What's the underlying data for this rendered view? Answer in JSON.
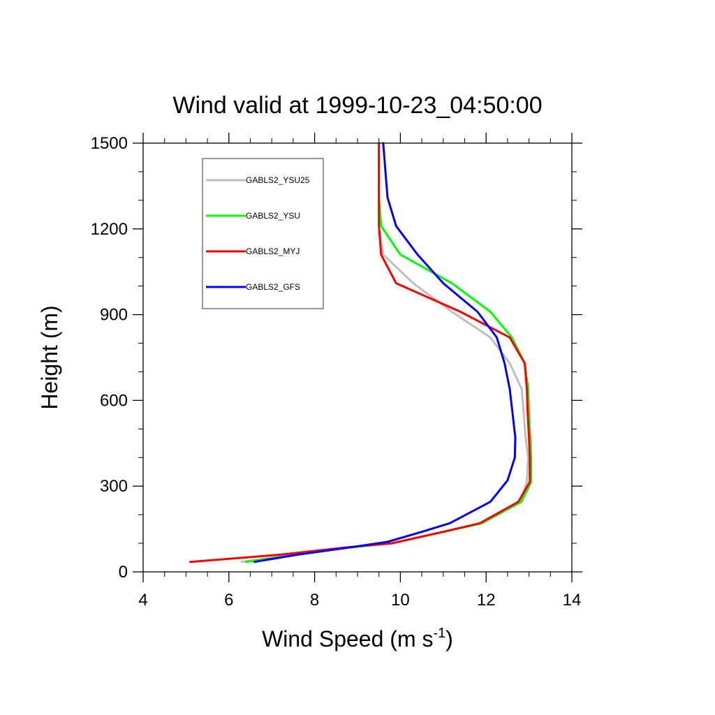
{
  "chart_data": {
    "type": "line",
    "title": "Wind valid at 1999-10-23_04:50:00",
    "xlabel": "Wind Speed (m s",
    "xlabel_superscript": "-1",
    "xlabel_suffix": ")",
    "ylabel": "Height (m)",
    "xlim": [
      4,
      14
    ],
    "ylim": [
      0,
      1500
    ],
    "xticks": [
      4,
      6,
      8,
      10,
      12,
      14
    ],
    "yticks": [
      0,
      300,
      600,
      900,
      1200,
      1500
    ],
    "grid": false,
    "legend_position": "top-left",
    "series": [
      {
        "name": "GABLS2_YSU25",
        "color": "#bebebe",
        "x": [
          6.3,
          7.5,
          8.7,
          9.8,
          11.0,
          11.9,
          12.8,
          12.95,
          12.98,
          12.92,
          12.88,
          12.83,
          12.55,
          12.1,
          11.2,
          10.3,
          9.6,
          9.5,
          9.5,
          9.5
        ],
        "y": [
          35,
          60,
          85,
          100,
          140,
          170,
          245,
          315,
          400,
          470,
          550,
          640,
          730,
          820,
          910,
          1010,
          1110,
          1210,
          1310,
          1500
        ]
      },
      {
        "name": "GABLS2_YSU",
        "color": "#00ff00",
        "x": [
          6.4,
          7.6,
          8.8,
          9.8,
          11.0,
          11.9,
          12.82,
          13.05,
          13.05,
          13.03,
          13.0,
          12.98,
          12.9,
          12.6,
          12.1,
          11.2,
          10.0,
          9.55,
          9.5,
          9.5
        ],
        "y": [
          35,
          60,
          85,
          100,
          140,
          170,
          245,
          315,
          400,
          470,
          550,
          640,
          730,
          820,
          910,
          1010,
          1110,
          1210,
          1310,
          1500
        ]
      },
      {
        "name": "GABLS2_MYJ",
        "color": "#ff0000",
        "x": [
          5.1,
          7.2,
          8.7,
          9.8,
          11.0,
          11.85,
          12.75,
          13.02,
          13.02,
          13.0,
          12.97,
          12.95,
          12.9,
          12.55,
          11.4,
          9.9,
          9.55,
          9.5,
          9.5,
          9.5
        ],
        "y": [
          35,
          60,
          85,
          100,
          140,
          170,
          245,
          315,
          400,
          470,
          550,
          640,
          730,
          820,
          910,
          1010,
          1110,
          1210,
          1310,
          1500
        ]
      },
      {
        "name": "GABLS2_GFS",
        "color": "#0000ff",
        "x": [
          6.6,
          7.6,
          8.8,
          9.7,
          10.5,
          11.15,
          12.1,
          12.5,
          12.67,
          12.68,
          12.62,
          12.55,
          12.43,
          12.25,
          11.8,
          11.0,
          10.4,
          9.9,
          9.7,
          9.6
        ],
        "y": [
          35,
          60,
          85,
          105,
          140,
          170,
          245,
          320,
          400,
          470,
          550,
          640,
          730,
          820,
          910,
          1010,
          1110,
          1210,
          1310,
          1500
        ]
      }
    ]
  }
}
